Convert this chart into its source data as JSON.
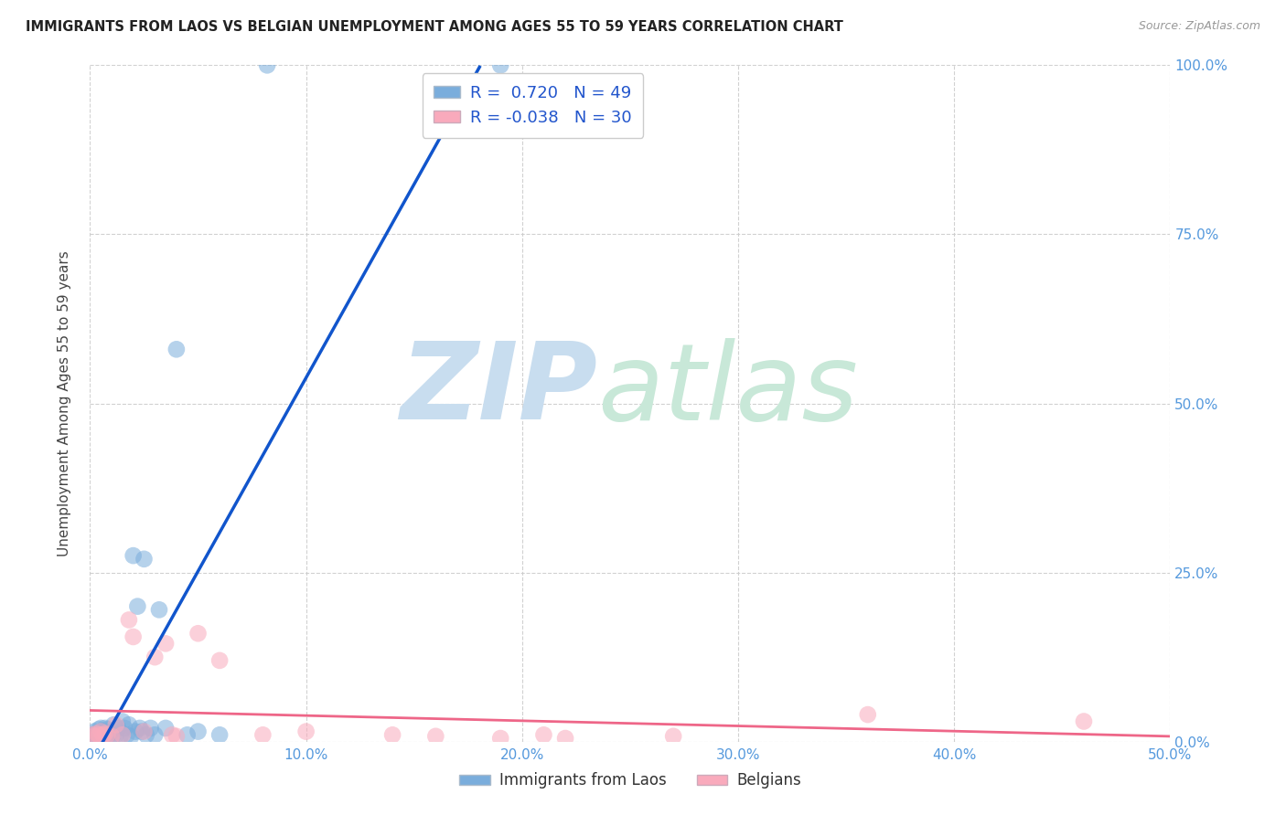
{
  "title": "IMMIGRANTS FROM LAOS VS BELGIAN UNEMPLOYMENT AMONG AGES 55 TO 59 YEARS CORRELATION CHART",
  "source": "Source: ZipAtlas.com",
  "ylabel": "Unemployment Among Ages 55 to 59 years",
  "xlim": [
    0,
    0.5
  ],
  "ylim": [
    0,
    1.0
  ],
  "xticks": [
    0.0,
    0.1,
    0.2,
    0.3,
    0.4,
    0.5
  ],
  "xticklabels": [
    "0.0%",
    "10.0%",
    "20.0%",
    "30.0%",
    "40.0%",
    "50.0%"
  ],
  "yticks_right": [
    0.0,
    0.25,
    0.5,
    0.75,
    1.0
  ],
  "yticklabels_right": [
    "0.0%",
    "25.0%",
    "50.0%",
    "75.0%",
    "100.0%"
  ],
  "r_blue": 0.72,
  "n_blue": 49,
  "r_pink": -0.038,
  "n_pink": 30,
  "blue_color": "#7AADDC",
  "pink_color": "#F9AABC",
  "trend_blue": "#1155CC",
  "trend_pink": "#EE6688",
  "dash_color": "#AACCEE",
  "tick_color": "#5599DD",
  "blue_scatter_x": [
    0.001,
    0.001,
    0.002,
    0.002,
    0.002,
    0.003,
    0.003,
    0.003,
    0.004,
    0.004,
    0.004,
    0.005,
    0.005,
    0.005,
    0.006,
    0.006,
    0.007,
    0.007,
    0.008,
    0.008,
    0.009,
    0.01,
    0.01,
    0.011,
    0.012,
    0.013,
    0.014,
    0.015,
    0.016,
    0.017,
    0.018,
    0.019,
    0.02,
    0.021,
    0.022,
    0.023,
    0.024,
    0.025,
    0.026,
    0.028,
    0.03,
    0.032,
    0.035,
    0.04,
    0.045,
    0.05,
    0.06,
    0.082,
    0.19
  ],
  "blue_scatter_y": [
    0.005,
    0.01,
    0.005,
    0.01,
    0.015,
    0.005,
    0.008,
    0.012,
    0.005,
    0.01,
    0.018,
    0.005,
    0.01,
    0.02,
    0.008,
    0.015,
    0.01,
    0.02,
    0.008,
    0.018,
    0.012,
    0.005,
    0.015,
    0.025,
    0.01,
    0.02,
    0.008,
    0.03,
    0.02,
    0.01,
    0.025,
    0.008,
    0.275,
    0.015,
    0.2,
    0.02,
    0.015,
    0.27,
    0.01,
    0.02,
    0.01,
    0.195,
    0.02,
    0.58,
    0.01,
    0.015,
    0.01,
    1.0,
    1.0
  ],
  "pink_scatter_x": [
    0.001,
    0.002,
    0.003,
    0.004,
    0.005,
    0.006,
    0.007,
    0.008,
    0.01,
    0.012,
    0.015,
    0.018,
    0.02,
    0.025,
    0.03,
    0.035,
    0.038,
    0.04,
    0.05,
    0.06,
    0.08,
    0.1,
    0.14,
    0.16,
    0.19,
    0.21,
    0.22,
    0.27,
    0.36,
    0.46
  ],
  "pink_scatter_y": [
    0.01,
    0.008,
    0.012,
    0.01,
    0.015,
    0.01,
    0.012,
    0.01,
    0.008,
    0.025,
    0.01,
    0.18,
    0.155,
    0.015,
    0.125,
    0.145,
    0.01,
    0.008,
    0.16,
    0.12,
    0.01,
    0.015,
    0.01,
    0.008,
    0.005,
    0.01,
    0.005,
    0.008,
    0.04,
    0.03
  ]
}
